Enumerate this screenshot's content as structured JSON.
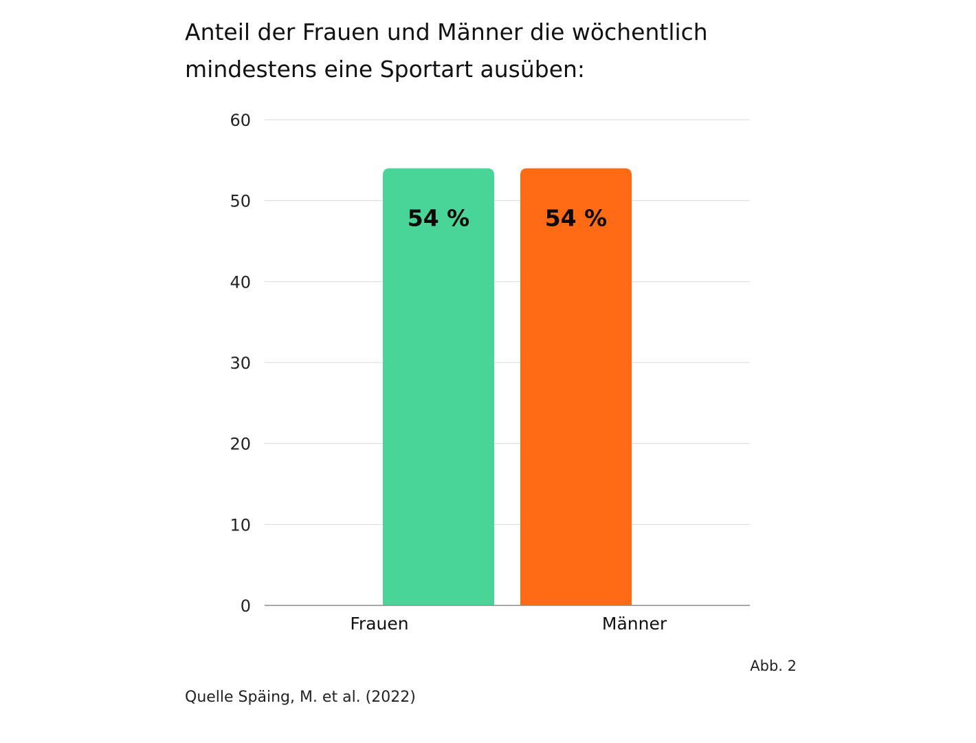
{
  "chart_data": {
    "type": "bar",
    "title_lines": [
      "Anteil der Frauen und Männer die wöchentlich",
      "mindestens eine Sportart ausüben:"
    ],
    "categories": [
      "Frauen",
      "Männer"
    ],
    "values": [
      54,
      54
    ],
    "value_labels": [
      "54 %",
      "54 %"
    ],
    "bar_colors": [
      "#4AD598",
      "#FF6A14"
    ],
    "ylim": [
      0,
      60
    ],
    "yticks": [
      "0",
      "10",
      "20",
      "30",
      "40",
      "50",
      "60"
    ],
    "xlabel": "",
    "ylabel": "",
    "grid": true,
    "legend": "none"
  },
  "figure_label": "Abb. 2",
  "source": "Quelle Späing, M. et al. (2022)"
}
